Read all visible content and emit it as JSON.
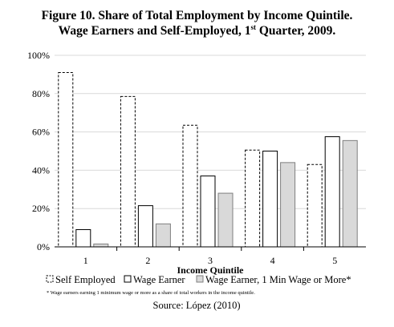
{
  "chart_data": {
    "type": "bar",
    "title_line1": "Figure 10. Share of Total Employment by Income Quintile.",
    "title_line2_pre": "Wage Earners and Self-Employed, 1",
    "title_line2_sup": "st",
    "title_line2_post": " Quarter, 2009.",
    "xlabel": "Income Quintile",
    "categories": [
      "1",
      "2",
      "3",
      "4",
      "5"
    ],
    "ylim": [
      0,
      100
    ],
    "yticks": [
      0,
      20,
      40,
      60,
      80,
      100
    ],
    "ytick_labels": [
      "0%",
      "20%",
      "40%",
      "60%",
      "80%",
      "100%"
    ],
    "grid": true,
    "legend_position": "bottom",
    "series": [
      {
        "name": "Self Employed",
        "style": "dashed-outline",
        "values": [
          91,
          78.5,
          63.5,
          50.5,
          43
        ]
      },
      {
        "name": "Wage Earner",
        "style": "solid-outline",
        "values": [
          9,
          21.5,
          37,
          50,
          57.5
        ]
      },
      {
        "name": "Wage Earner, 1 Min Wage or More*",
        "style": "gray-fill",
        "values": [
          1.5,
          12,
          28,
          44,
          55.5
        ]
      }
    ],
    "colors": {
      "gray_fill": "#d9d9d9",
      "outline": "#000000",
      "grid": "#d9d9d9"
    },
    "footnote": "* Wage earners earning 1 minimum wage or more as a share of total workers in the income quintile.",
    "source": "Source: López (2010)"
  }
}
